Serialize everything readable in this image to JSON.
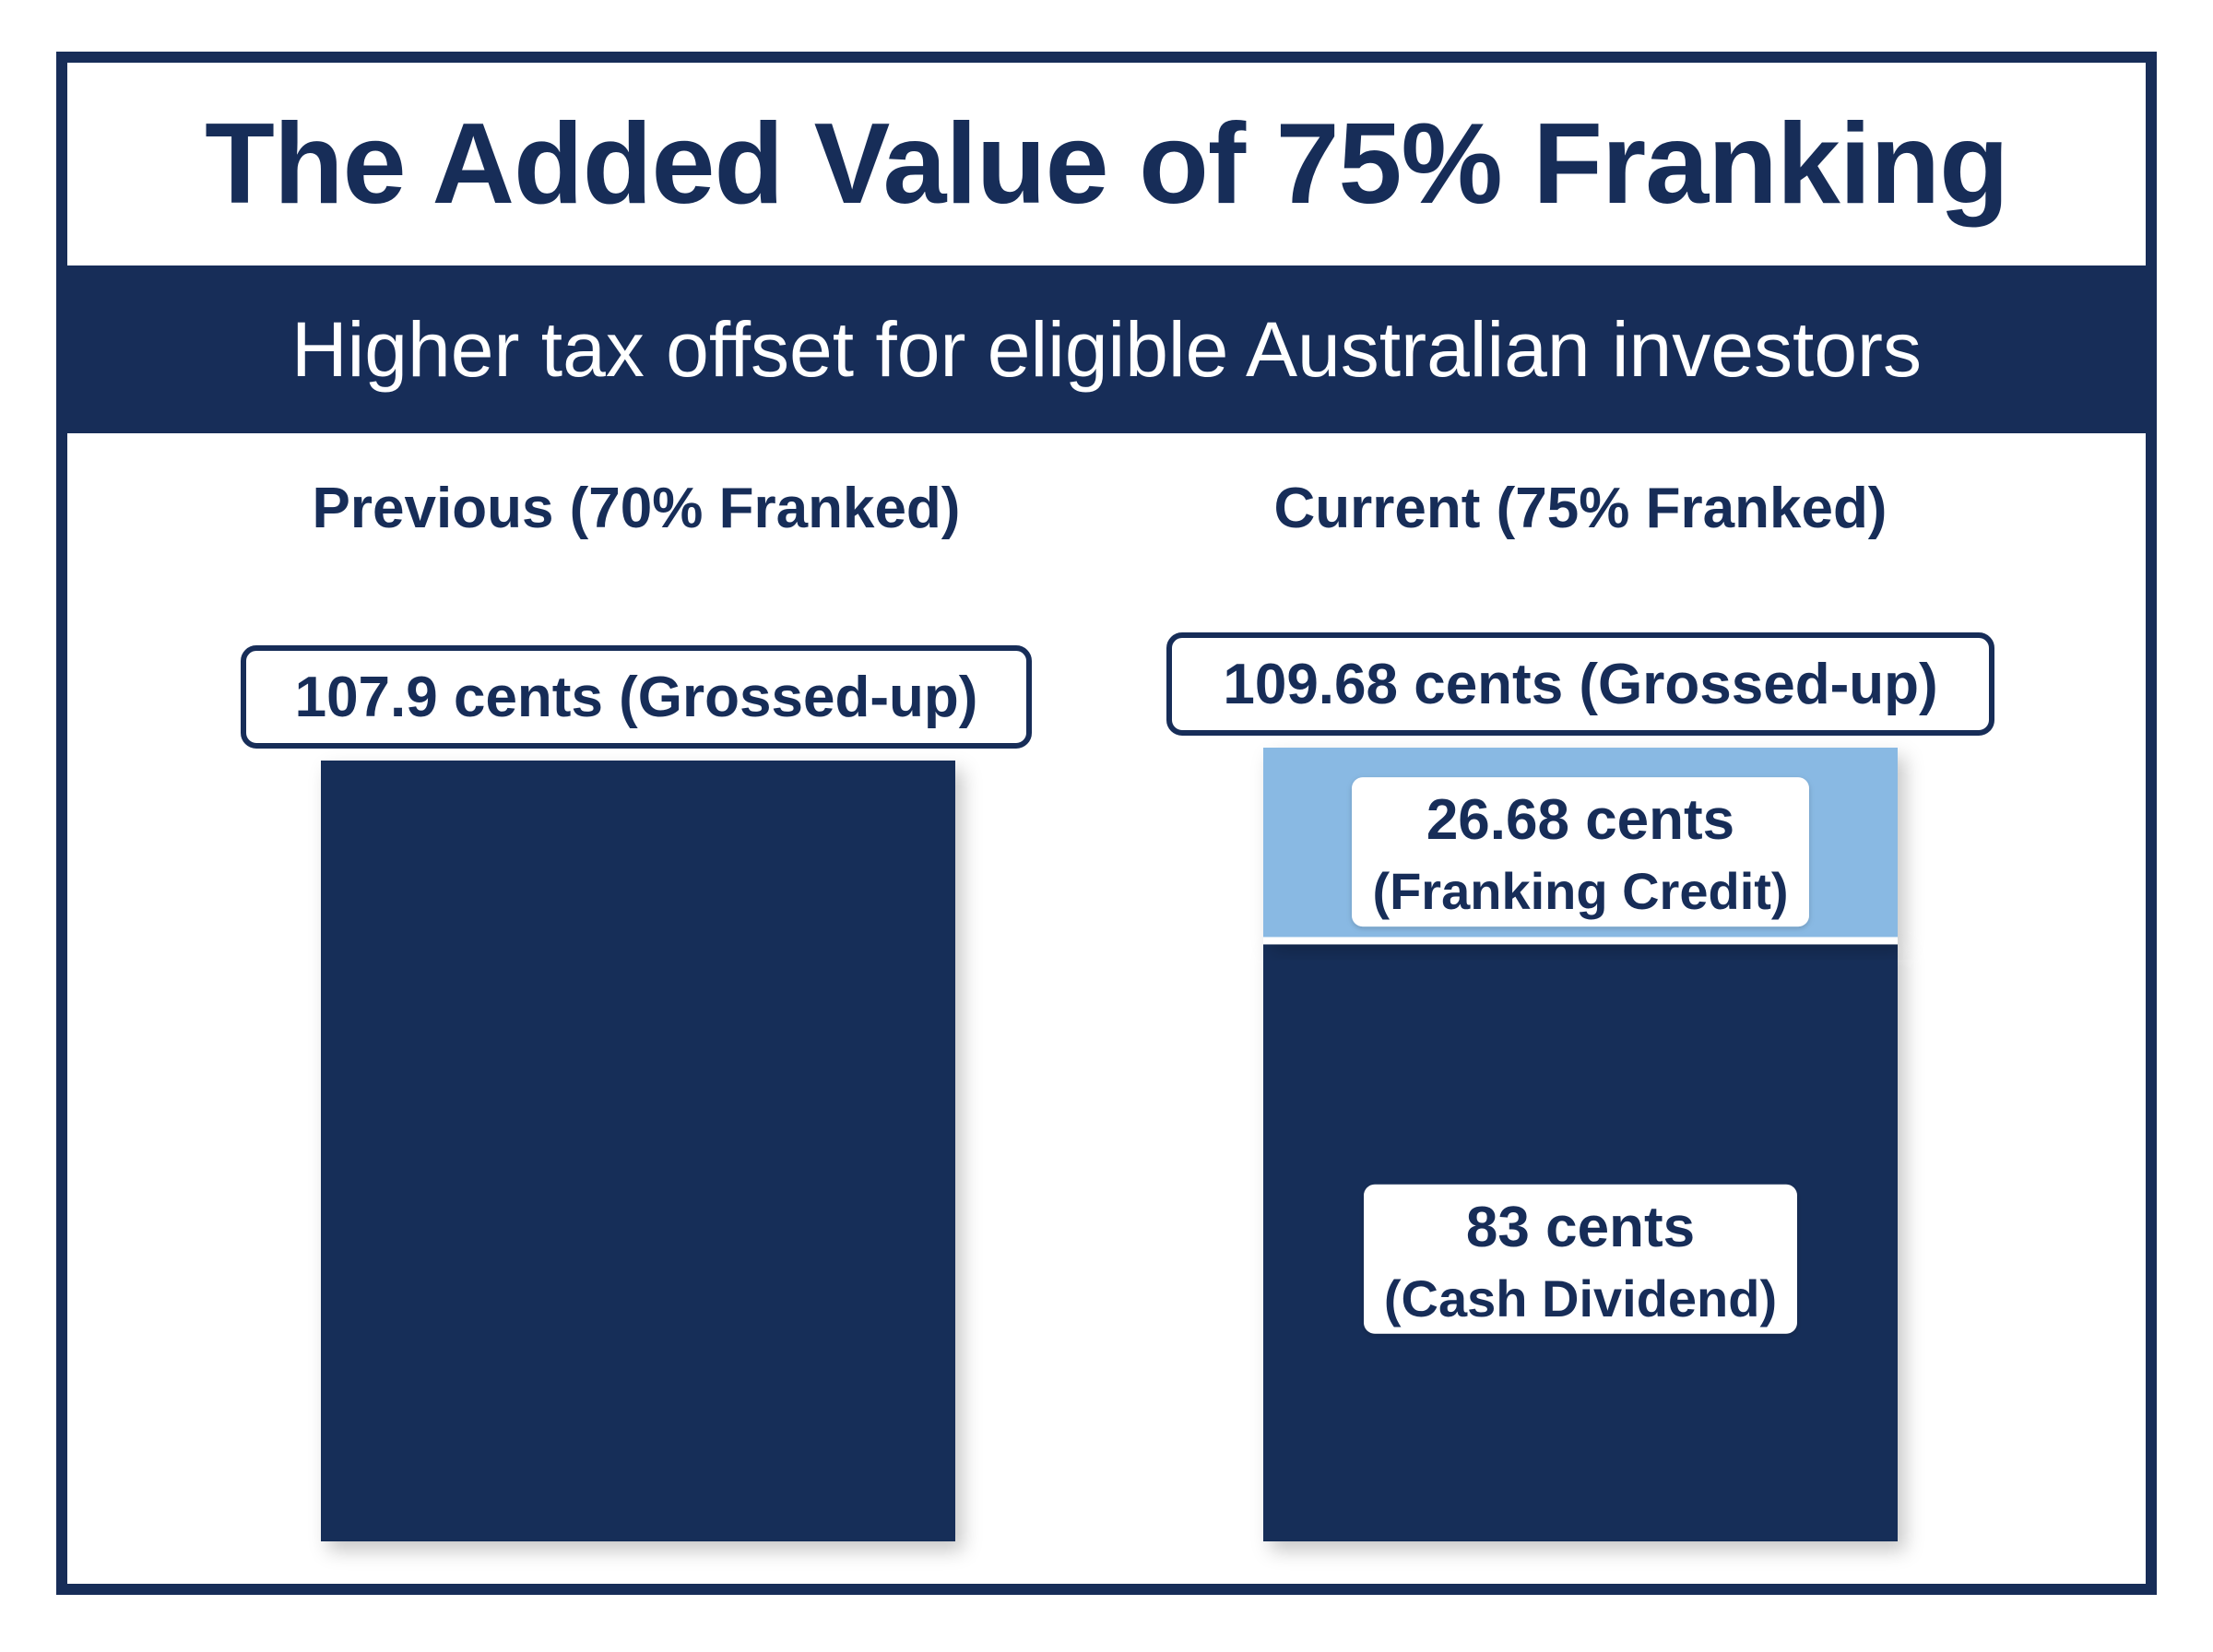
{
  "header": {
    "title": "The Added Value of 75% Franking",
    "subtitle": "Higher tax offset for eligible Australian investors"
  },
  "colors": {
    "navy": "#172d58",
    "light_blue": "#89b9e3",
    "white": "#ffffff"
  },
  "chart_data": {
    "type": "bar",
    "stacked": true,
    "unit": "cents",
    "categories": [
      "Previous (70% Franked)",
      "Current (75% Franked)"
    ],
    "totals": [
      {
        "value": 107.9,
        "label": "107.9 cents (Grossed-up)"
      },
      {
        "value": 109.68,
        "label": "109.68 cents (Grossed-up)"
      }
    ],
    "series": [
      {
        "name": "Cash Dividend",
        "color": "#172d58",
        "values": [
          null,
          83
        ],
        "labels": [
          null,
          {
            "value": "83 cents",
            "name": "(Cash Dividend)"
          }
        ]
      },
      {
        "name": "Franking Credit",
        "color": "#89b9e3",
        "values": [
          null,
          26.68
        ],
        "labels": [
          null,
          {
            "value": "26.68 cents",
            "name": "(Franking Credit)"
          }
        ]
      }
    ],
    "ylim": [
      0,
      109.68
    ],
    "grid": false,
    "legend": "none"
  }
}
